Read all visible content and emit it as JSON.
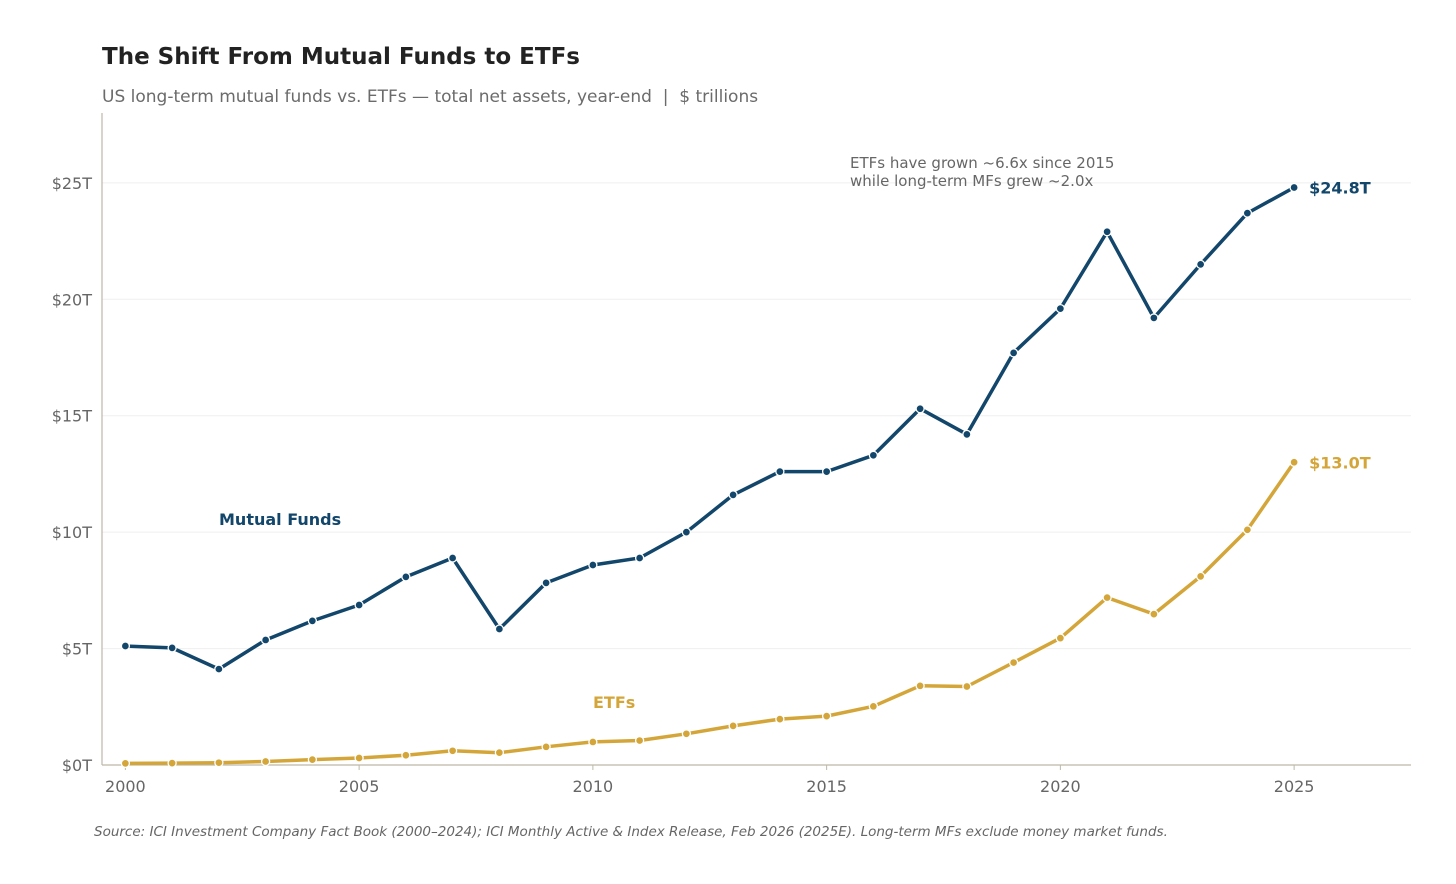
{
  "chart_data": {
    "type": "line",
    "title": "The Shift From Mutual Funds to ETFs",
    "subtitle": "US long-term mutual funds vs. ETFs — total net assets, year-end  |  $ trillions",
    "xlabel": "",
    "ylabel": "",
    "xlim": [
      1999.5,
      2027.5
    ],
    "ylim": [
      0,
      28
    ],
    "grid": "horizontal",
    "x_ticks": [
      2000,
      2005,
      2010,
      2015,
      2020,
      2025
    ],
    "x_tick_labels": [
      "2000",
      "2005",
      "2010",
      "2015",
      "2020",
      "2025"
    ],
    "y_ticks": [
      0,
      5,
      10,
      15,
      20,
      25
    ],
    "y_tick_labels": [
      "$0T",
      "$5T",
      "$10T",
      "$15T",
      "$20T",
      "$25T"
    ],
    "x": [
      2000,
      2001,
      2002,
      2003,
      2004,
      2005,
      2006,
      2007,
      2008,
      2009,
      2010,
      2011,
      2012,
      2013,
      2014,
      2015,
      2016,
      2017,
      2018,
      2019,
      2020,
      2021,
      2022,
      2023,
      2024,
      2025
    ],
    "series": [
      {
        "name": "Mutual Funds",
        "color": "#12466b",
        "end_label": "$24.8T",
        "values": [
          5.11,
          5.03,
          4.12,
          5.37,
          6.19,
          6.87,
          8.08,
          8.89,
          5.84,
          7.82,
          8.59,
          8.89,
          10.0,
          11.6,
          12.6,
          12.6,
          13.3,
          15.3,
          14.2,
          17.7,
          19.6,
          22.9,
          19.2,
          21.5,
          23.7,
          24.8
        ]
      },
      {
        "name": "ETFs",
        "color": "#d4a63a",
        "end_label": "$13.0T",
        "values": [
          0.07,
          0.08,
          0.1,
          0.15,
          0.23,
          0.3,
          0.42,
          0.61,
          0.53,
          0.78,
          0.99,
          1.05,
          1.34,
          1.68,
          1.97,
          2.1,
          2.52,
          3.4,
          3.37,
          4.4,
          5.45,
          7.19,
          6.48,
          8.1,
          10.1,
          13.0
        ]
      }
    ],
    "annotation": [
      "ETFs have grown ~6.6x since 2015",
      "while long-term MFs grew ~2.0x"
    ],
    "source": "Source: ICI Investment Company Fact Book (2000–2024); ICI Monthly Active & Index Release, Feb 2026 (2025E). Long-term MFs exclude money market funds."
  }
}
